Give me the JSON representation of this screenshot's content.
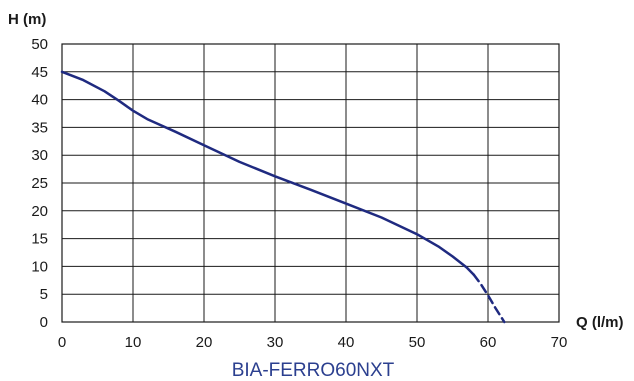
{
  "chart_data": {
    "type": "line",
    "title": "BIA-FERRO60NXT",
    "xlabel": "Q (l/m)",
    "ylabel": "H (m)",
    "xlim": [
      0,
      70
    ],
    "ylim": [
      0,
      50
    ],
    "xticks": [
      0,
      10,
      20,
      30,
      40,
      50,
      60,
      70
    ],
    "yticks": [
      0,
      5,
      10,
      15,
      20,
      25,
      30,
      35,
      40,
      45,
      50
    ],
    "grid": true,
    "curve_color": "#1f2a80",
    "series": [
      {
        "style": "solid",
        "x": [
          0,
          3,
          6,
          8,
          10,
          12,
          16,
          20,
          25,
          30,
          35,
          40,
          45,
          50,
          53,
          55,
          57,
          58
        ],
        "y": [
          45,
          43.5,
          41.5,
          39.8,
          38,
          36.5,
          34.2,
          31.8,
          28.8,
          26.2,
          23.8,
          21.3,
          18.8,
          15.8,
          13.6,
          11.8,
          9.8,
          8.5
        ]
      },
      {
        "style": "dashed",
        "x": [
          58,
          59,
          60,
          61,
          62.3
        ],
        "y": [
          8.5,
          6.8,
          4.8,
          2.6,
          0
        ]
      }
    ]
  }
}
